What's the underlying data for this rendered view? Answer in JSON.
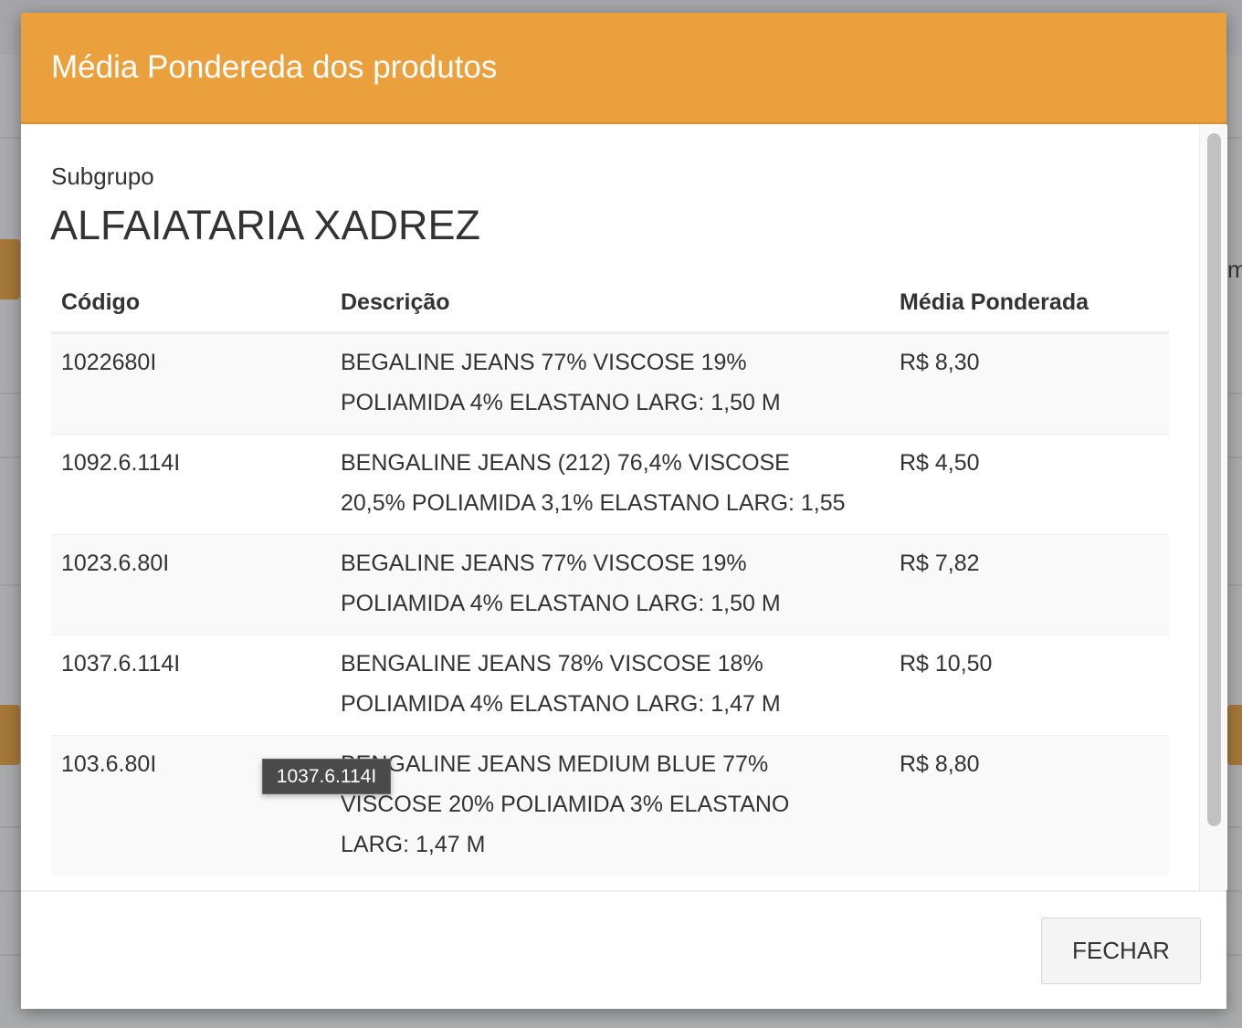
{
  "modal": {
    "title": "Média Pondereda dos produtos",
    "subgroup_label": "Subgrupo",
    "subgroup_value": "ALFAIATARIA XADREZ",
    "close_label": "FECHAR",
    "accent_color": "#e9a03d"
  },
  "background": {
    "partial_text": "m"
  },
  "table": {
    "headers": [
      "Código",
      "Descrição",
      "Média Ponderada"
    ],
    "rows": [
      {
        "code": "1022680I",
        "description": [
          "BEGALINE JEANS 77% VISCOSE 19%",
          "POLIAMIDA 4% ELASTANO LARG: 1,50 M"
        ],
        "avg": "R$ 8,30"
      },
      {
        "code": "1092.6.114I",
        "description": [
          "BENGALINE JEANS (212) 76,4% VISCOSE",
          "20,5% POLIAMIDA 3,1% ELASTANO LARG: 1,55"
        ],
        "avg": "R$ 4,50"
      },
      {
        "code": "1023.6.80I",
        "description": [
          "BEGALINE JEANS 77% VISCOSE 19%",
          "POLIAMIDA 4% ELASTANO LARG: 1,50 M"
        ],
        "avg": "R$ 7,82"
      },
      {
        "code": "1037.6.114I",
        "description": [
          "BENGALINE JEANS 78% VISCOSE 18%",
          "POLIAMIDA 4% ELASTANO LARG: 1,47 M"
        ],
        "avg": "R$ 10,50"
      },
      {
        "code": "103.6.80I",
        "description": [
          "BENGALINE JEANS MEDIUM BLUE 77%",
          "VISCOSE 20% POLIAMIDA 3% ELASTANO",
          "LARG: 1,47 M"
        ],
        "avg": "R$ 8,80"
      }
    ]
  },
  "tooltip": {
    "text": "1037.6.114I"
  }
}
